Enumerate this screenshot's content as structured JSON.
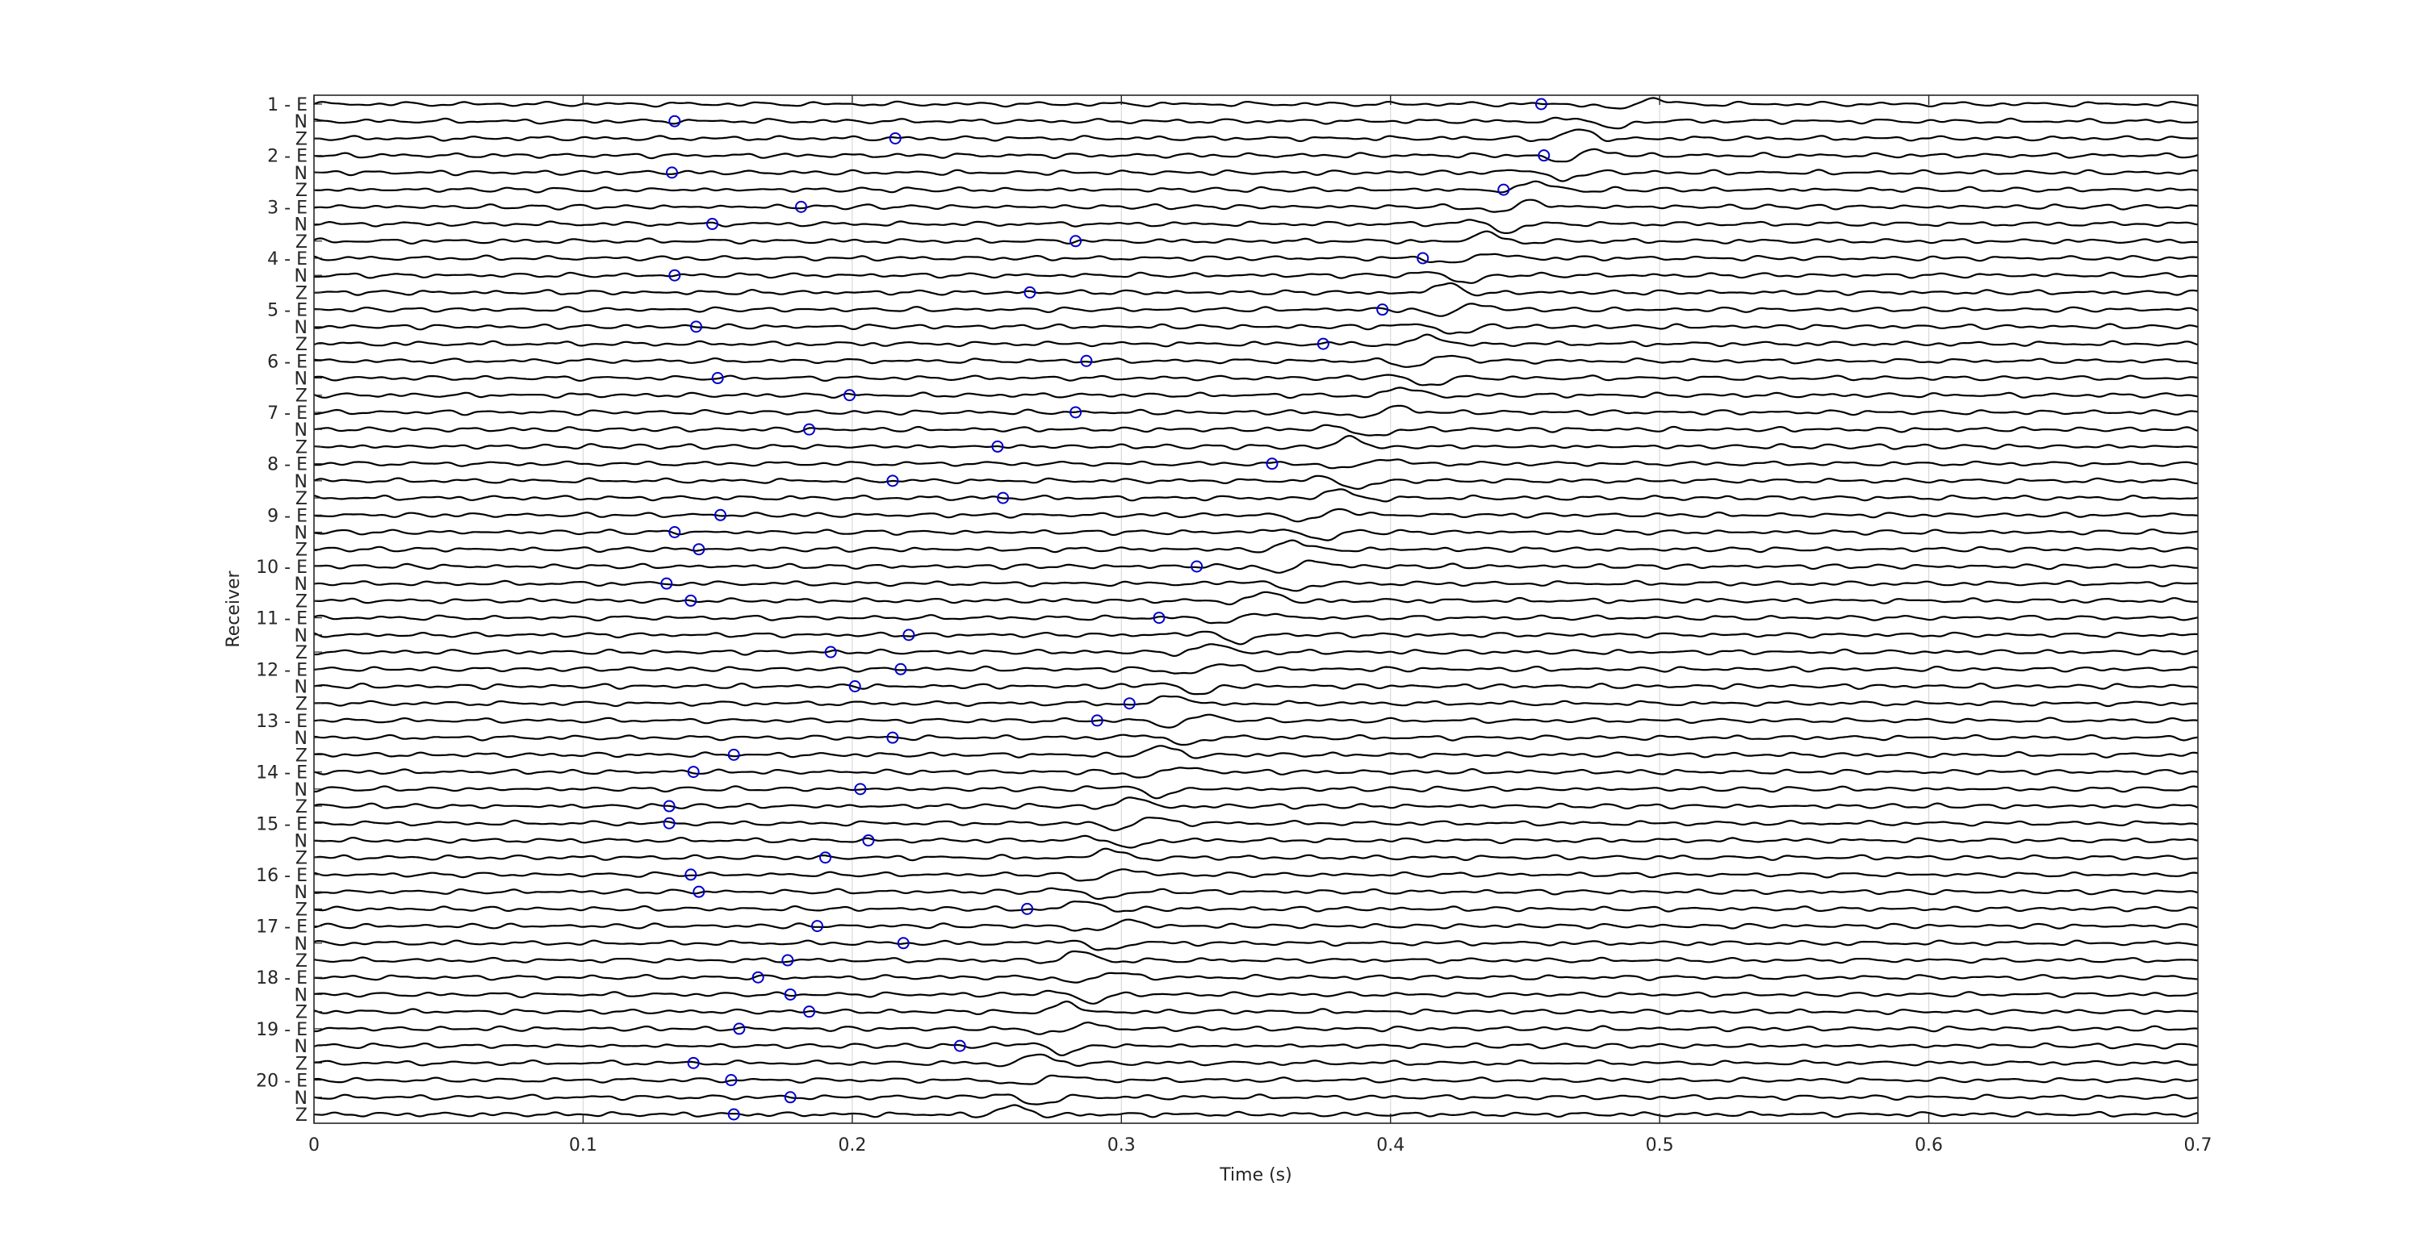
{
  "chart_data": {
    "type": "line",
    "title": "",
    "xlabel": "Time (s)",
    "ylabel": "Receiver",
    "xlim": [
      0,
      0.7
    ],
    "x_ticks": [
      0,
      0.1,
      0.2,
      0.3,
      0.4,
      0.5,
      0.6,
      0.7
    ],
    "x_tick_labels": [
      "0",
      "0.1",
      "0.2",
      "0.3",
      "0.4",
      "0.5",
      "0.6",
      "0.7"
    ],
    "grid": "vertical",
    "legend": "none",
    "trace_color": "#000000",
    "pick_color": "#0000cc",
    "trace_labels": [
      "1 - E",
      "N",
      "Z",
      "2 - E",
      "N",
      "Z",
      "3 - E",
      "N",
      "Z",
      "4 - E",
      "N",
      "Z",
      "5 - E",
      "N",
      "Z",
      "6 - E",
      "N",
      "Z",
      "7 - E",
      "N",
      "Z",
      "8 - E",
      "N",
      "Z",
      "9 - E",
      "N",
      "Z",
      "10 - E",
      "N",
      "Z",
      "11 - E",
      "N",
      "Z",
      "12 - E",
      "N",
      "Z",
      "13 - E",
      "N",
      "Z",
      "14 - E",
      "N",
      "Z",
      "15 - E",
      "N",
      "Z",
      "16 - E",
      "N",
      "Z",
      "17 - E",
      "N",
      "Z",
      "18 - E",
      "N",
      "Z",
      "19 - E",
      "N",
      "Z",
      "20 - E",
      "N",
      "Z"
    ],
    "pick_times": [
      0.456,
      0.134,
      0.216,
      0.457,
      0.133,
      0.442,
      0.181,
      0.148,
      0.283,
      0.412,
      0.134,
      0.266,
      0.397,
      0.142,
      0.375,
      0.287,
      0.15,
      0.199,
      0.283,
      0.184,
      0.254,
      0.356,
      0.215,
      0.256,
      0.151,
      0.134,
      0.143,
      0.328,
      0.131,
      0.14,
      0.314,
      0.221,
      0.192,
      0.218,
      0.201,
      0.303,
      0.291,
      0.215,
      0.156,
      0.141,
      0.203,
      0.132,
      0.132,
      0.206,
      0.19,
      0.14,
      0.143,
      0.265,
      0.187,
      0.219,
      0.176,
      0.165,
      0.177,
      0.184,
      0.158,
      0.24,
      0.141,
      0.155,
      0.177,
      0.156
    ],
    "arrival_times": [
      0.49,
      0.48,
      0.47,
      0.47,
      0.46,
      0.455,
      0.445,
      0.44,
      0.435,
      0.43,
      0.425,
      0.42,
      0.425,
      0.42,
      0.415,
      0.415,
      0.41,
      0.405,
      0.395,
      0.39,
      0.385,
      0.39,
      0.385,
      0.38,
      0.375,
      0.37,
      0.365,
      0.365,
      0.36,
      0.355,
      0.345,
      0.34,
      0.335,
      0.33,
      0.325,
      0.32,
      0.325,
      0.32,
      0.315,
      0.315,
      0.31,
      0.305,
      0.305,
      0.3,
      0.295,
      0.295,
      0.29,
      0.285,
      0.295,
      0.29,
      0.285,
      0.29,
      0.285,
      0.28,
      0.28,
      0.275,
      0.27,
      0.27,
      0.265,
      0.26
    ]
  }
}
